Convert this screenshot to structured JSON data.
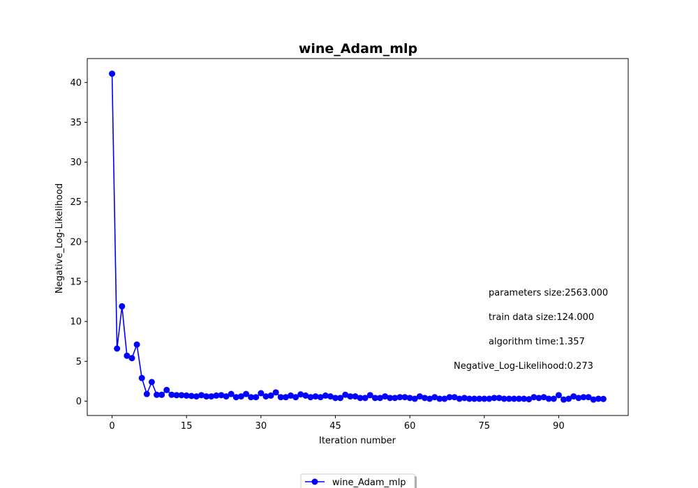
{
  "chart_data": {
    "type": "line",
    "title": "wine_Adam_mlp",
    "xlabel": "Iteration number",
    "ylabel": "Negative_Log-Likelihood",
    "xlim": [
      -5,
      104
    ],
    "ylim": [
      -1.8,
      43.0
    ],
    "xticks": [
      0,
      15,
      30,
      45,
      60,
      75,
      90
    ],
    "yticks": [
      0,
      5,
      10,
      15,
      20,
      25,
      30,
      35,
      40
    ],
    "grid": false,
    "legend_position": "bottom-center",
    "annotations": [
      "parameters size:2563.000",
      "train data size:124.000",
      "algorithm time:1.357",
      "Negative_Log-Likelihood:0.273"
    ],
    "series": [
      {
        "name": "wine_Adam_mlp",
        "color": "#0000ff",
        "marker": "circle",
        "x": [
          0,
          1,
          2,
          3,
          4,
          5,
          6,
          7,
          8,
          9,
          10,
          11,
          12,
          13,
          14,
          15,
          16,
          17,
          18,
          19,
          20,
          21,
          22,
          23,
          24,
          25,
          26,
          27,
          28,
          29,
          30,
          31,
          32,
          33,
          34,
          35,
          36,
          37,
          38,
          39,
          40,
          41,
          42,
          43,
          44,
          45,
          46,
          47,
          48,
          49,
          50,
          51,
          52,
          53,
          54,
          55,
          56,
          57,
          58,
          59,
          60,
          61,
          62,
          63,
          64,
          65,
          66,
          67,
          68,
          69,
          70,
          71,
          72,
          73,
          74,
          75,
          76,
          77,
          78,
          79,
          80,
          81,
          82,
          83,
          84,
          85,
          86,
          87,
          88,
          89,
          90,
          91,
          92,
          93,
          94,
          95,
          96,
          97,
          98,
          99
        ],
        "values": [
          41.1,
          6.6,
          11.9,
          5.7,
          5.4,
          7.1,
          2.9,
          0.9,
          2.4,
          0.8,
          0.8,
          1.4,
          0.8,
          0.75,
          0.75,
          0.7,
          0.65,
          0.6,
          0.75,
          0.6,
          0.6,
          0.7,
          0.75,
          0.6,
          0.9,
          0.5,
          0.6,
          0.9,
          0.5,
          0.5,
          1.0,
          0.6,
          0.7,
          1.1,
          0.5,
          0.5,
          0.7,
          0.5,
          0.85,
          0.7,
          0.5,
          0.6,
          0.5,
          0.7,
          0.6,
          0.4,
          0.4,
          0.8,
          0.6,
          0.6,
          0.4,
          0.4,
          0.75,
          0.4,
          0.4,
          0.6,
          0.4,
          0.4,
          0.5,
          0.5,
          0.4,
          0.3,
          0.6,
          0.4,
          0.3,
          0.5,
          0.3,
          0.3,
          0.5,
          0.5,
          0.3,
          0.4,
          0.3,
          0.3,
          0.3,
          0.3,
          0.3,
          0.4,
          0.4,
          0.3,
          0.3,
          0.3,
          0.3,
          0.3,
          0.25,
          0.5,
          0.4,
          0.5,
          0.3,
          0.3,
          0.75,
          0.2,
          0.3,
          0.6,
          0.4,
          0.5,
          0.5,
          0.2,
          0.3,
          0.273
        ]
      }
    ]
  }
}
